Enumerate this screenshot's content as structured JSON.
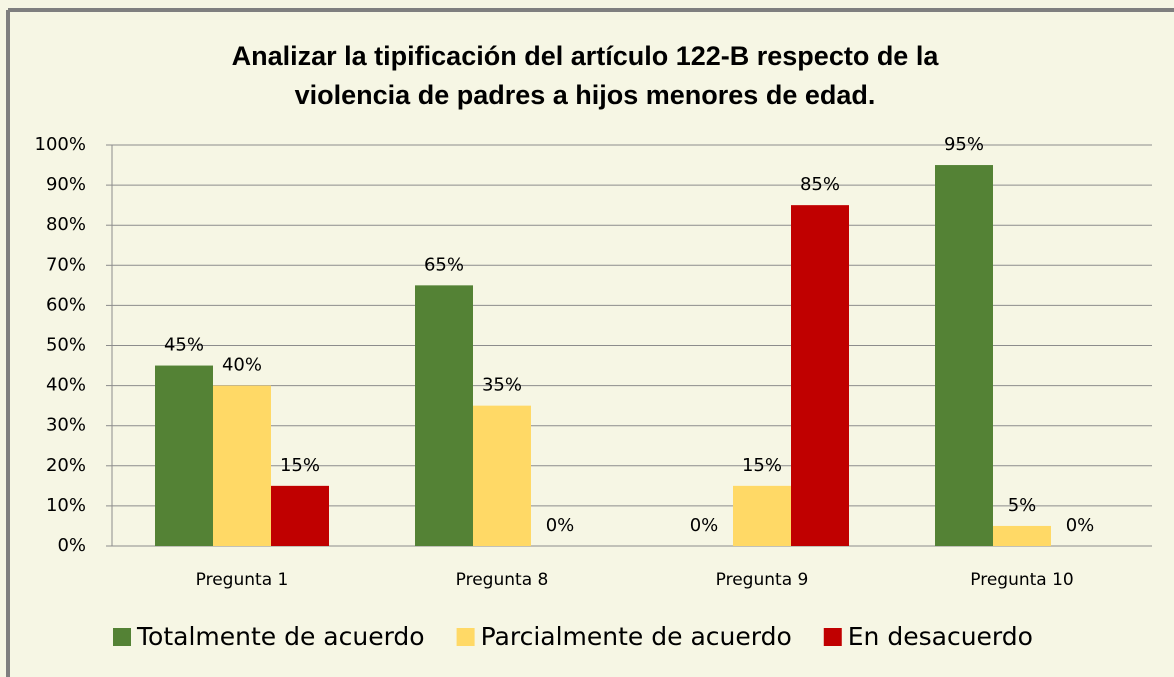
{
  "chart_data": {
    "type": "bar",
    "title": [
      "Analizar la tipificación del artículo 122-B respecto de la",
      "violencia de padres a hijos menores de edad."
    ],
    "categories": [
      "Pregunta 1",
      "Pregunta 8",
      "Pregunta 9",
      "Pregunta 10"
    ],
    "series": [
      {
        "name": "Totalmente de acuerdo",
        "color": "#548235",
        "values": [
          45,
          65,
          0,
          95
        ],
        "value_labels": [
          "45%",
          "65%",
          "0%",
          "95%"
        ]
      },
      {
        "name": "Parcialmente de acuerdo",
        "color": "#ffd966",
        "values": [
          40,
          35,
          15,
          5
        ],
        "value_labels": [
          "40%",
          "35%",
          "15%",
          "5%"
        ]
      },
      {
        "name": "En desacuerdo",
        "color": "#c00000",
        "values": [
          15,
          0,
          85,
          0
        ],
        "value_labels": [
          "15%",
          "0%",
          "85%",
          "0%"
        ]
      }
    ],
    "ylim": [
      0,
      100
    ],
    "yticks": [
      {
        "value": 0,
        "label": "0%"
      },
      {
        "value": 10,
        "label": "10%"
      },
      {
        "value": 20,
        "label": "20%"
      },
      {
        "value": 30,
        "label": "30%"
      },
      {
        "value": 40,
        "label": "40%"
      },
      {
        "value": 50,
        "label": "50%"
      },
      {
        "value": 60,
        "label": "60%"
      },
      {
        "value": 70,
        "label": "70%"
      },
      {
        "value": 80,
        "label": "80%"
      },
      {
        "value": 90,
        "label": "90%"
      },
      {
        "value": 100,
        "label": "100%"
      }
    ],
    "grid": true,
    "legend": "bottom"
  }
}
